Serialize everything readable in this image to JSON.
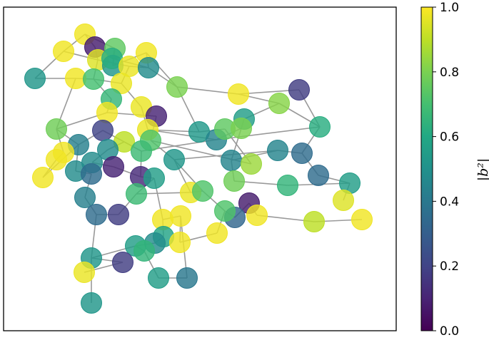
{
  "chart_data": {
    "type": "graph",
    "colormap": "viridis",
    "edge_color": "#999999",
    "colorbar": {
      "label": "|b²|",
      "range": [
        0.0,
        1.0
      ],
      "ticks": [
        "0.0",
        "0.2",
        "0.4",
        "0.6",
        "0.8",
        "1.0"
      ]
    },
    "nodes": [
      [
        49,
        110,
        0.52
      ],
      [
        89,
        72,
        0.98
      ],
      [
        119,
        48,
        0.98
      ],
      [
        133,
        66,
        0.08
      ],
      [
        161,
        68,
        0.75
      ],
      [
        137,
        84,
        0.95
      ],
      [
        158,
        92,
        0.52
      ],
      [
        157,
        82,
        0.62
      ],
      [
        181,
        93,
        0.97
      ],
      [
        205,
        74,
        0.98
      ],
      [
        208,
        95,
        0.48
      ],
      [
        106,
        110,
        0.98
      ],
      [
        131,
        111,
        0.7
      ],
      [
        170,
        117,
        0.97
      ],
      [
        156,
        139,
        0.66
      ],
      [
        248,
        122,
        0.8
      ],
      [
        334,
        132,
        0.98
      ],
      [
        419,
        126,
        0.18
      ],
      [
        391,
        145,
        0.82
      ],
      [
        342,
        167,
        0.55
      ],
      [
        448,
        178,
        0.62
      ],
      [
        150,
        158,
        0.98
      ],
      [
        198,
        150,
        0.97
      ],
      [
        219,
        163,
        0.1
      ],
      [
        207,
        182,
        0.97
      ],
      [
        79,
        181,
        0.78
      ],
      [
        110,
        203,
        0.43
      ],
      [
        144,
        183,
        0.2
      ],
      [
        174,
        199,
        0.9
      ],
      [
        151,
        210,
        0.48
      ],
      [
        211,
        197,
        0.72
      ],
      [
        198,
        212,
        0.68
      ],
      [
        279,
        185,
        0.53
      ],
      [
        303,
        196,
        0.45
      ],
      [
        315,
        181,
        0.75
      ],
      [
        338,
        180,
        0.8
      ],
      [
        89,
        214,
        0.98
      ],
      [
        79,
        224,
        0.98
      ],
      [
        60,
        249,
        0.98
      ],
      [
        106,
        240,
        0.48
      ],
      [
        129,
        228,
        0.48
      ],
      [
        128,
        244,
        0.35
      ],
      [
        159,
        234,
        0.1
      ],
      [
        197,
        248,
        0.12
      ],
      [
        216,
        250,
        0.55
      ],
      [
        244,
        224,
        0.52
      ],
      [
        324,
        225,
        0.45
      ],
      [
        352,
        230,
        0.85
      ],
      [
        389,
        211,
        0.45
      ],
      [
        423,
        215,
        0.35
      ],
      [
        446,
        246,
        0.35
      ],
      [
        490,
        257,
        0.55
      ],
      [
        119,
        277,
        0.43
      ],
      [
        135,
        301,
        0.35
      ],
      [
        166,
        301,
        0.18
      ],
      [
        191,
        272,
        0.68
      ],
      [
        267,
        270,
        0.97
      ],
      [
        284,
        268,
        0.72
      ],
      [
        328,
        254,
        0.78
      ],
      [
        403,
        260,
        0.65
      ],
      [
        349,
        285,
        0.08
      ],
      [
        360,
        302,
        0.98
      ],
      [
        329,
        305,
        0.33
      ],
      [
        315,
        296,
        0.72
      ],
      [
        228,
        308,
        0.98
      ],
      [
        253,
        303,
        0.98
      ],
      [
        304,
        327,
        0.98
      ],
      [
        440,
        311,
        0.9
      ],
      [
        481,
        281,
        0.95
      ],
      [
        507,
        308,
        0.98
      ],
      [
        229,
        332,
        0.58
      ],
      [
        217,
        341,
        0.48
      ],
      [
        252,
        340,
        0.98
      ],
      [
        190,
        345,
        0.55
      ],
      [
        202,
        352,
        0.65
      ],
      [
        128,
        362,
        0.52
      ],
      [
        172,
        368,
        0.18
      ],
      [
        118,
        382,
        0.97
      ],
      [
        222,
        390,
        0.55
      ],
      [
        262,
        390,
        0.4
      ],
      [
        128,
        425,
        0.52
      ]
    ],
    "edges": [
      [
        0,
        1
      ],
      [
        0,
        11
      ],
      [
        1,
        2
      ],
      [
        1,
        5
      ],
      [
        2,
        3
      ],
      [
        2,
        4
      ],
      [
        3,
        5
      ],
      [
        4,
        6
      ],
      [
        4,
        7
      ],
      [
        5,
        8
      ],
      [
        5,
        12
      ],
      [
        6,
        9
      ],
      [
        7,
        10
      ],
      [
        8,
        13
      ],
      [
        9,
        10
      ],
      [
        10,
        15
      ],
      [
        11,
        12
      ],
      [
        11,
        25
      ],
      [
        12,
        13
      ],
      [
        12,
        14
      ],
      [
        13,
        22
      ],
      [
        14,
        21
      ],
      [
        15,
        16
      ],
      [
        15,
        32
      ],
      [
        16,
        17
      ],
      [
        16,
        18
      ],
      [
        17,
        20
      ],
      [
        18,
        19
      ],
      [
        19,
        35
      ],
      [
        20,
        33
      ],
      [
        20,
        49
      ],
      [
        21,
        23
      ],
      [
        22,
        24
      ],
      [
        23,
        30
      ],
      [
        24,
        32
      ],
      [
        25,
        26
      ],
      [
        25,
        36
      ],
      [
        26,
        27
      ],
      [
        26,
        39
      ],
      [
        27,
        28
      ],
      [
        28,
        29
      ],
      [
        28,
        31
      ],
      [
        29,
        40
      ],
      [
        30,
        45
      ],
      [
        31,
        33
      ],
      [
        32,
        34
      ],
      [
        33,
        35
      ],
      [
        34,
        47
      ],
      [
        35,
        46
      ],
      [
        36,
        37
      ],
      [
        37,
        38
      ],
      [
        38,
        26
      ],
      [
        39,
        41
      ],
      [
        40,
        42
      ],
      [
        41,
        52
      ],
      [
        42,
        43
      ],
      [
        43,
        44
      ],
      [
        44,
        55
      ],
      [
        45,
        56
      ],
      [
        46,
        48
      ],
      [
        48,
        49
      ],
      [
        49,
        50
      ],
      [
        50,
        51
      ],
      [
        51,
        68
      ],
      [
        52,
        53
      ],
      [
        53,
        54
      ],
      [
        54,
        55
      ],
      [
        55,
        56
      ],
      [
        56,
        57
      ],
      [
        57,
        63
      ],
      [
        58,
        46
      ],
      [
        58,
        59
      ],
      [
        59,
        51
      ],
      [
        60,
        61
      ],
      [
        61,
        67
      ],
      [
        67,
        69
      ],
      [
        62,
        63
      ],
      [
        63,
        66
      ],
      [
        64,
        65
      ],
      [
        64,
        70
      ],
      [
        65,
        72
      ],
      [
        66,
        72
      ],
      [
        70,
        71
      ],
      [
        71,
        73
      ],
      [
        73,
        74
      ],
      [
        74,
        78
      ],
      [
        78,
        79
      ],
      [
        79,
        65
      ],
      [
        73,
        75
      ],
      [
        75,
        76
      ],
      [
        76,
        77
      ],
      [
        75,
        80
      ],
      [
        53,
        75
      ],
      [
        44,
        64
      ],
      [
        31,
        43
      ],
      [
        18,
        20
      ],
      [
        9,
        15
      ],
      [
        8,
        10
      ],
      [
        30,
        47
      ],
      [
        45,
        48
      ],
      [
        62,
        60
      ],
      [
        57,
        45
      ],
      [
        24,
        33
      ],
      [
        21,
        25
      ]
    ]
  }
}
